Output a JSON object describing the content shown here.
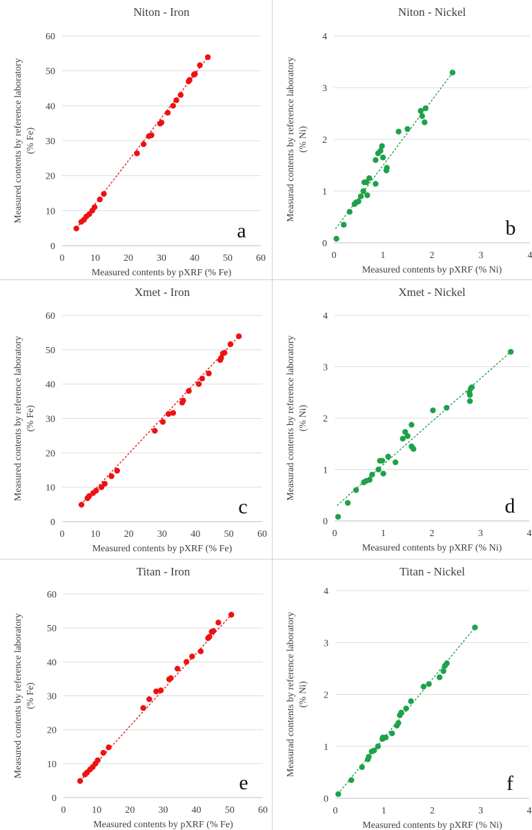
{
  "chart_data": [
    {
      "id": "a",
      "type": "scatter",
      "title": "Niton - Iron",
      "xlabel": "Measured contents by pXRF (% Fe)",
      "ylabel_line1": "Measured contents by reference laboratory",
      "ylabel_line2": "(% Fe)",
      "panel_letter": "a",
      "color": "#ee1111",
      "xlim": [
        0,
        60
      ],
      "ylim": [
        0,
        60
      ],
      "xticks": [
        "0",
        "10",
        "20",
        "30",
        "40",
        "50",
        "60"
      ],
      "yticks": [
        "0",
        "10",
        "20",
        "30",
        "40",
        "50",
        "60"
      ],
      "trendline": [
        [
          4.3,
          4.9
        ],
        [
          44.0,
          53.9
        ]
      ],
      "points": [
        [
          4.3,
          4.9
        ],
        [
          5.8,
          6.8
        ],
        [
          6.6,
          7.4
        ],
        [
          7.3,
          8.3
        ],
        [
          8.2,
          9.0
        ],
        [
          9.1,
          10.0
        ],
        [
          9.8,
          11.0
        ],
        [
          11.4,
          13.2
        ],
        [
          12.6,
          14.8
        ],
        [
          22.6,
          26.4
        ],
        [
          24.6,
          29.0
        ],
        [
          26.2,
          31.3
        ],
        [
          27.0,
          31.6
        ],
        [
          29.6,
          34.9
        ],
        [
          30.0,
          35.2
        ],
        [
          31.9,
          38.0
        ],
        [
          33.5,
          40.0
        ],
        [
          34.5,
          41.6
        ],
        [
          35.8,
          43.1
        ],
        [
          38.2,
          47.0
        ],
        [
          38.5,
          47.4
        ],
        [
          39.8,
          48.9
        ],
        [
          40.1,
          49.1
        ],
        [
          41.6,
          51.6
        ],
        [
          44.0,
          53.9
        ]
      ]
    },
    {
      "id": "b",
      "type": "scatter",
      "title": "Niton - Nickel",
      "xlabel": "Measured contents by pXRF (% Ni)",
      "ylabel_line1": "Measurad contents by reference laboratory",
      "ylabel_line2": "(% Ni)",
      "panel_letter": "b",
      "color": "#1ea14a",
      "xlim": [
        0,
        4
      ],
      "ylim": [
        0,
        4
      ],
      "xticks": [
        "0",
        "1",
        "2",
        "3",
        "4"
      ],
      "yticks": [
        "0",
        "1",
        "2",
        "3",
        "4"
      ],
      "trendline": [
        [
          0.03,
          0.27
        ],
        [
          2.43,
          3.3
        ]
      ],
      "points": [
        [
          0.05,
          0.08
        ],
        [
          0.2,
          0.35
        ],
        [
          0.32,
          0.6
        ],
        [
          0.42,
          0.75
        ],
        [
          0.45,
          0.78
        ],
        [
          0.5,
          0.8
        ],
        [
          0.55,
          0.9
        ],
        [
          0.6,
          1.0
        ],
        [
          0.62,
          1.17
        ],
        [
          0.66,
          1.17
        ],
        [
          0.68,
          0.92
        ],
        [
          0.72,
          1.25
        ],
        [
          0.85,
          1.14
        ],
        [
          0.85,
          1.6
        ],
        [
          0.9,
          1.73
        ],
        [
          0.95,
          1.78
        ],
        [
          0.98,
          1.87
        ],
        [
          1.0,
          1.65
        ],
        [
          1.07,
          1.4
        ],
        [
          1.08,
          1.45
        ],
        [
          1.32,
          2.15
        ],
        [
          1.5,
          2.2
        ],
        [
          1.77,
          2.55
        ],
        [
          1.8,
          2.45
        ],
        [
          1.85,
          2.33
        ],
        [
          1.87,
          2.6
        ],
        [
          2.42,
          3.29
        ]
      ]
    },
    {
      "id": "c",
      "type": "scatter",
      "title": "Xmet - Iron",
      "xlabel": "Measured contents by pXRF (% Fe)",
      "ylabel_line1": "Measured contents by reference laboratory",
      "ylabel_line2": "(% Fe)",
      "panel_letter": "c",
      "color": "#ee1111",
      "xlim": [
        0,
        60
      ],
      "ylim": [
        0,
        60
      ],
      "xticks": [
        "0",
        "10",
        "20",
        "30",
        "40",
        "50",
        "60"
      ],
      "yticks": [
        "0",
        "10",
        "20",
        "30",
        "40",
        "50",
        "60"
      ],
      "trendline": [
        [
          5.6,
          4.9
        ],
        [
          53.0,
          53.9
        ]
      ],
      "points": [
        [
          5.8,
          4.9
        ],
        [
          7.6,
          6.8
        ],
        [
          8.1,
          7.4
        ],
        [
          9.3,
          8.3
        ],
        [
          10.2,
          9.0
        ],
        [
          11.8,
          10.0
        ],
        [
          12.8,
          11.0
        ],
        [
          14.8,
          13.2
        ],
        [
          16.5,
          14.8
        ],
        [
          27.8,
          26.4
        ],
        [
          30.2,
          29.0
        ],
        [
          31.9,
          31.3
        ],
        [
          33.3,
          31.6
        ],
        [
          36.0,
          34.6
        ],
        [
          36.3,
          35.2
        ],
        [
          38.0,
          38.0
        ],
        [
          41.0,
          40.0
        ],
        [
          42.0,
          41.6
        ],
        [
          44.0,
          43.1
        ],
        [
          47.4,
          47.0
        ],
        [
          47.7,
          47.6
        ],
        [
          48.2,
          48.9
        ],
        [
          48.7,
          49.1
        ],
        [
          50.5,
          51.6
        ],
        [
          53.0,
          53.9
        ]
      ]
    },
    {
      "id": "d",
      "type": "scatter",
      "title": "Xmet - Nickel",
      "xlabel": "Measured contents by pXRF (% Ni)",
      "ylabel_line1": "Measurad contents by reference laboratory",
      "ylabel_line2": "(% Ni)",
      "panel_letter": "d",
      "color": "#1ea14a",
      "xlim": [
        0,
        4
      ],
      "ylim": [
        0,
        4
      ],
      "xticks": [
        "0",
        "1",
        "2",
        "3",
        "4"
      ],
      "yticks": [
        "0",
        "1",
        "2",
        "3",
        "4"
      ],
      "trendline": [
        [
          0.05,
          0.3
        ],
        [
          3.62,
          3.29
        ]
      ],
      "points": [
        [
          0.07,
          0.08
        ],
        [
          0.27,
          0.35
        ],
        [
          0.44,
          0.6
        ],
        [
          0.6,
          0.75
        ],
        [
          0.65,
          0.78
        ],
        [
          0.72,
          0.8
        ],
        [
          0.77,
          0.9
        ],
        [
          0.9,
          1.0
        ],
        [
          0.93,
          1.17
        ],
        [
          0.98,
          1.17
        ],
        [
          1.0,
          0.92
        ],
        [
          1.1,
          1.25
        ],
        [
          1.25,
          1.14
        ],
        [
          1.4,
          1.6
        ],
        [
          1.45,
          1.73
        ],
        [
          1.5,
          1.65
        ],
        [
          1.58,
          1.87
        ],
        [
          1.58,
          1.45
        ],
        [
          1.62,
          1.4
        ],
        [
          2.02,
          2.15
        ],
        [
          2.3,
          2.2
        ],
        [
          2.77,
          2.5
        ],
        [
          2.78,
          2.45
        ],
        [
          2.78,
          2.33
        ],
        [
          2.8,
          2.58
        ],
        [
          2.82,
          2.6
        ],
        [
          3.62,
          3.29
        ]
      ]
    },
    {
      "id": "e",
      "type": "scatter",
      "title": "Titan - Iron",
      "xlabel": "Measured contents by pXRF (% Fe)",
      "ylabel_line1": "Measured contents by reference laboratory",
      "ylabel_line2": "(% Fe)",
      "panel_letter": "e",
      "color": "#ee1111",
      "xlim": [
        0,
        60
      ],
      "ylim": [
        0,
        60
      ],
      "xticks": [
        "0",
        "10",
        "20",
        "30",
        "40",
        "50",
        "60"
      ],
      "yticks": [
        "0",
        "10",
        "20",
        "30",
        "40",
        "50",
        "60"
      ],
      "trendline": [
        [
          5.0,
          4.9
        ],
        [
          50.5,
          53.9
        ]
      ],
      "points": [
        [
          5.0,
          4.9
        ],
        [
          6.5,
          6.8
        ],
        [
          7.1,
          7.4
        ],
        [
          8.0,
          8.3
        ],
        [
          8.8,
          9.0
        ],
        [
          9.6,
          10.0
        ],
        [
          10.3,
          11.0
        ],
        [
          12.0,
          13.2
        ],
        [
          13.6,
          14.8
        ],
        [
          24.0,
          26.4
        ],
        [
          25.8,
          29.0
        ],
        [
          27.9,
          31.3
        ],
        [
          29.3,
          31.6
        ],
        [
          31.8,
          34.9
        ],
        [
          32.3,
          35.2
        ],
        [
          34.3,
          38.0
        ],
        [
          37.0,
          40.0
        ],
        [
          38.7,
          41.6
        ],
        [
          41.3,
          43.1
        ],
        [
          43.5,
          47.0
        ],
        [
          43.9,
          47.4
        ],
        [
          44.6,
          48.9
        ],
        [
          45.1,
          49.1
        ],
        [
          46.6,
          51.6
        ],
        [
          50.5,
          53.9
        ]
      ]
    },
    {
      "id": "f",
      "type": "scatter",
      "title": "Titan - Nickel",
      "xlabel": "Measured contents by pXRF (% Ni)",
      "ylabel_line1": "Measurad contents by reference laboratory",
      "ylabel_line2": "(% Ni)",
      "panel_letter": "f",
      "color": "#1ea14a",
      "xlim": [
        0,
        4
      ],
      "ylim": [
        0,
        4
      ],
      "xticks": [
        "0",
        "1",
        "2",
        "3",
        "4"
      ],
      "yticks": [
        "0",
        "1",
        "2",
        "3",
        "4"
      ],
      "trendline": [
        [
          0.05,
          0.08
        ],
        [
          2.88,
          3.29
        ]
      ],
      "points": [
        [
          0.06,
          0.08
        ],
        [
          0.33,
          0.35
        ],
        [
          0.55,
          0.6
        ],
        [
          0.67,
          0.75
        ],
        [
          0.69,
          0.8
        ],
        [
          0.75,
          0.9
        ],
        [
          0.8,
          0.92
        ],
        [
          0.88,
          1.0
        ],
        [
          0.97,
          1.14
        ],
        [
          0.98,
          1.17
        ],
        [
          1.04,
          1.17
        ],
        [
          1.17,
          1.25
        ],
        [
          1.27,
          1.4
        ],
        [
          1.3,
          1.45
        ],
        [
          1.33,
          1.6
        ],
        [
          1.36,
          1.65
        ],
        [
          1.46,
          1.73
        ],
        [
          1.56,
          1.87
        ],
        [
          1.82,
          2.15
        ],
        [
          1.93,
          2.2
        ],
        [
          2.15,
          2.33
        ],
        [
          2.23,
          2.45
        ],
        [
          2.26,
          2.55
        ],
        [
          2.3,
          2.6
        ],
        [
          2.88,
          3.29
        ]
      ]
    }
  ]
}
